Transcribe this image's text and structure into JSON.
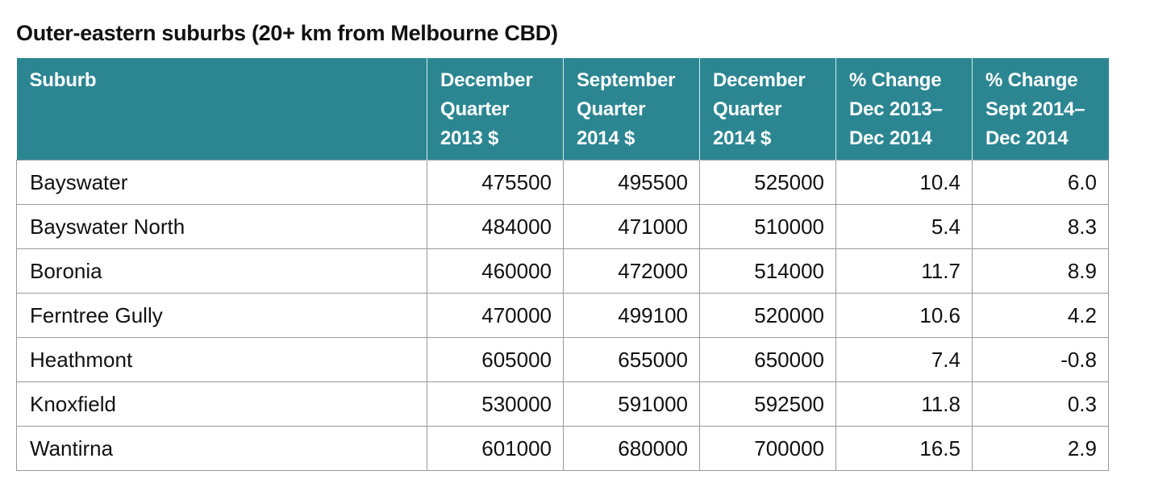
{
  "title": "Outer-eastern suburbs (20+ km from Melbourne CBD)",
  "table": {
    "headers": [
      [
        "Suburb"
      ],
      [
        "December",
        "Quarter",
        "2013 $"
      ],
      [
        "September",
        "Quarter",
        "2014 $"
      ],
      [
        "December",
        "Quarter",
        "2014 $"
      ],
      [
        "% Change",
        "Dec 2013–",
        "Dec 2014"
      ],
      [
        "% Change",
        "Sept 2014–",
        "Dec 2014"
      ]
    ],
    "rows": [
      [
        "Bayswater",
        "475500",
        "495500",
        "525000",
        "10.4",
        "6.0"
      ],
      [
        "Bayswater North",
        "484000",
        "471000",
        "510000",
        "5.4",
        "8.3"
      ],
      [
        "Boronia",
        "460000",
        "472000",
        "514000",
        "11.7",
        "8.9"
      ],
      [
        "Ferntree Gully",
        "470000",
        "499100",
        "520000",
        "10.6",
        "4.2"
      ],
      [
        "Heathmont",
        "605000",
        "655000",
        "650000",
        "7.4",
        "-0.8"
      ],
      [
        "Knoxfield",
        "530000",
        "591000",
        "592500",
        "11.8",
        "0.3"
      ],
      [
        "Wantirna",
        "601000",
        "680000",
        "700000",
        "16.5",
        "2.9"
      ]
    ]
  },
  "colors": {
    "header_background": "#2b8692",
    "header_text": "#ffffff",
    "grid_line": "#9a9a9a"
  }
}
